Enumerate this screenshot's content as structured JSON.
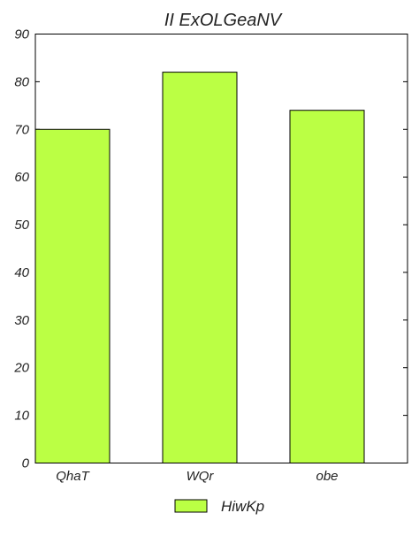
{
  "chart_data": {
    "type": "bar",
    "title": "II ExOLGeaNV",
    "categories": [
      "QhaT",
      "WQr",
      "obe"
    ],
    "series": [
      {
        "name": "HiwKp",
        "values": [
          70,
          82,
          74
        ],
        "color": "#bbff44"
      }
    ],
    "xlabel": "",
    "ylabel": "",
    "ylim": [
      0,
      90
    ],
    "yticks": [
      0,
      10,
      20,
      30,
      40,
      50,
      60,
      70,
      80,
      90
    ],
    "grid": false,
    "legend_position": "bottom-center",
    "edge_color": "#000000"
  }
}
